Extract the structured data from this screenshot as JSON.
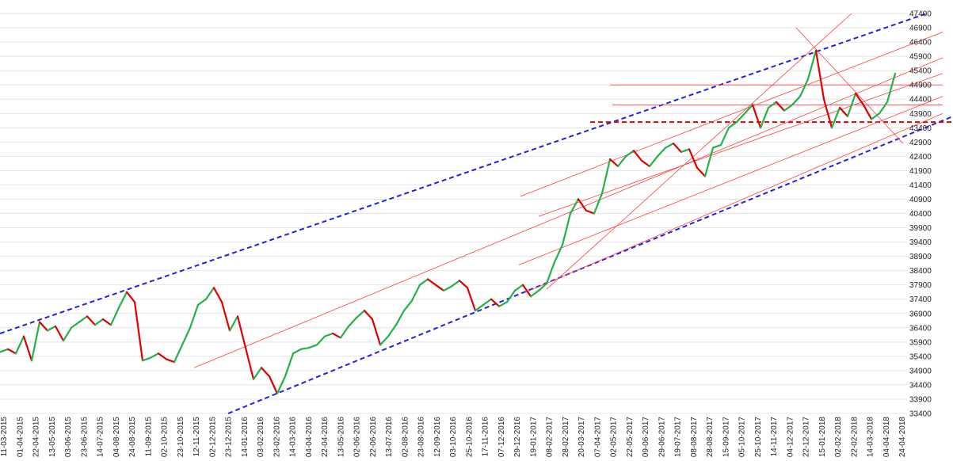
{
  "chart_data": {
    "type": "line",
    "title": "",
    "xlabel": "",
    "ylabel": "",
    "grid": true,
    "ylim": [
      33400,
      47400
    ],
    "y_axis_position": "right",
    "y_ticks": [
      33400,
      33900,
      34400,
      34900,
      35400,
      35900,
      36400,
      36900,
      37400,
      37900,
      38400,
      38900,
      39400,
      39900,
      40400,
      40900,
      41400,
      41900,
      42400,
      42900,
      43400,
      43900,
      44400,
      44900,
      45400,
      45900,
      46400,
      46900,
      47400
    ],
    "x_ticks": [
      "11-03-2015",
      "01-04-2015",
      "22-04-2015",
      "13-05-2015",
      "03-06-2015",
      "23-06-2015",
      "14-07-2015",
      "04-08-2015",
      "24-08-2015",
      "11-09-2015",
      "02-10-2015",
      "23-10-2015",
      "12-11-2015",
      "02-12-2015",
      "23-12-2015",
      "14-01-2016",
      "03-02-2016",
      "23-02-2016",
      "14-03-2016",
      "04-04-2016",
      "22-04-2016",
      "13-05-2016",
      "02-06-2016",
      "22-06-2016",
      "13-07-2016",
      "02-08-2016",
      "23-08-2016",
      "12-09-2016",
      "03-10-2016",
      "25-10-2016",
      "17-11-2016",
      "07-12-2016",
      "29-12-2016",
      "19-01-2017",
      "08-02-2017",
      "28-02-2017",
      "20-03-2017",
      "07-04-2017",
      "02-05-2017",
      "22-05-2017",
      "09-06-2017",
      "29-06-2017",
      "19-07-2017",
      "08-08-2017",
      "28-08-2017",
      "15-09-2017",
      "05-10-2017",
      "25-10-2017",
      "14-11-2017",
      "04-12-2017",
      "22-12-2017",
      "15-01-2018",
      "02-02-2018",
      "22-02-2018",
      "14-03-2018",
      "04-04-2018",
      "24-04-2018"
    ],
    "series": [
      {
        "up_color": "#22b14c",
        "down_color": "#e00000",
        "points": [
          [
            0,
            35550
          ],
          [
            10,
            35650
          ],
          [
            20,
            35500
          ],
          [
            30,
            36100
          ],
          [
            40,
            35250
          ],
          [
            50,
            36600
          ],
          [
            60,
            36300
          ],
          [
            70,
            36450
          ],
          [
            80,
            35950
          ],
          [
            90,
            36400
          ],
          [
            100,
            36600
          ],
          [
            110,
            36800
          ],
          [
            120,
            36500
          ],
          [
            130,
            36700
          ],
          [
            140,
            36500
          ],
          [
            150,
            37100
          ],
          [
            160,
            37650
          ],
          [
            170,
            37300
          ],
          [
            180,
            35250
          ],
          [
            190,
            35350
          ],
          [
            200,
            35500
          ],
          [
            210,
            35300
          ],
          [
            220,
            35200
          ],
          [
            230,
            35800
          ],
          [
            240,
            36400
          ],
          [
            250,
            37200
          ],
          [
            260,
            37400
          ],
          [
            270,
            37800
          ],
          [
            280,
            37300
          ],
          [
            290,
            36300
          ],
          [
            300,
            36800
          ],
          [
            310,
            35700
          ],
          [
            320,
            34600
          ],
          [
            330,
            35000
          ],
          [
            340,
            34700
          ],
          [
            350,
            34100
          ],
          [
            360,
            34700
          ],
          [
            370,
            35500
          ],
          [
            380,
            35650
          ],
          [
            390,
            35700
          ],
          [
            400,
            35800
          ],
          [
            410,
            36100
          ],
          [
            420,
            36200
          ],
          [
            430,
            36050
          ],
          [
            440,
            36450
          ],
          [
            450,
            36750
          ],
          [
            460,
            37000
          ],
          [
            470,
            36700
          ],
          [
            480,
            35800
          ],
          [
            490,
            36100
          ],
          [
            500,
            36500
          ],
          [
            510,
            37000
          ],
          [
            520,
            37350
          ],
          [
            530,
            37900
          ],
          [
            540,
            38100
          ],
          [
            550,
            37900
          ],
          [
            560,
            37700
          ],
          [
            570,
            37850
          ],
          [
            580,
            38050
          ],
          [
            590,
            37800
          ],
          [
            600,
            37000
          ],
          [
            610,
            37200
          ],
          [
            620,
            37400
          ],
          [
            630,
            37150
          ],
          [
            640,
            37300
          ],
          [
            650,
            37700
          ],
          [
            660,
            37900
          ],
          [
            670,
            37500
          ],
          [
            680,
            37700
          ],
          [
            690,
            37950
          ],
          [
            700,
            38700
          ],
          [
            710,
            39300
          ],
          [
            720,
            40400
          ],
          [
            730,
            40900
          ],
          [
            740,
            40500
          ],
          [
            750,
            40400
          ],
          [
            760,
            41100
          ],
          [
            770,
            42300
          ],
          [
            780,
            42050
          ],
          [
            790,
            42400
          ],
          [
            800,
            42600
          ],
          [
            810,
            42250
          ],
          [
            820,
            42050
          ],
          [
            830,
            42400
          ],
          [
            840,
            42700
          ],
          [
            850,
            42850
          ],
          [
            860,
            42550
          ],
          [
            870,
            42650
          ],
          [
            880,
            42000
          ],
          [
            890,
            41700
          ],
          [
            900,
            42700
          ],
          [
            910,
            42800
          ],
          [
            920,
            43400
          ],
          [
            930,
            43600
          ],
          [
            940,
            43900
          ],
          [
            950,
            44200
          ],
          [
            960,
            43400
          ],
          [
            970,
            44100
          ],
          [
            980,
            44300
          ],
          [
            990,
            44000
          ],
          [
            1000,
            44200
          ],
          [
            1010,
            44500
          ],
          [
            1020,
            45100
          ],
          [
            1030,
            46100
          ],
          [
            1040,
            44400
          ],
          [
            1050,
            43400
          ],
          [
            1060,
            44100
          ],
          [
            1070,
            43800
          ],
          [
            1080,
            44600
          ],
          [
            1090,
            44200
          ],
          [
            1100,
            43700
          ],
          [
            1110,
            43900
          ],
          [
            1120,
            44300
          ],
          [
            1130,
            45300
          ]
        ]
      }
    ],
    "annotations": [
      {
        "type": "line",
        "style": "dashed",
        "color": "#2222dd",
        "from": [
          0,
          36200
        ],
        "to": [
          1170,
          47400
        ]
      },
      {
        "type": "line",
        "style": "dashed",
        "color": "#2222dd",
        "from": [
          288,
          33400
        ],
        "to": [
          1203,
          43800
        ]
      },
      {
        "type": "line",
        "style": "dashed",
        "color": "#e00000",
        "from": [
          745,
          43600
        ],
        "to": [
          1203,
          43600
        ]
      },
      {
        "type": "line",
        "style": "solid",
        "color": "#ff4040",
        "from": [
          770,
          44900
        ],
        "to": [
          1190,
          44900
        ]
      },
      {
        "type": "line",
        "style": "solid",
        "color": "#ff4040",
        "from": [
          773,
          44200
        ],
        "to": [
          1190,
          44200
        ]
      },
      {
        "type": "line",
        "style": "solid",
        "color": "#ff4040",
        "from": [
          245,
          35000
        ],
        "to": [
          1190,
          45850
        ]
      },
      {
        "type": "line",
        "style": "solid",
        "color": "#ff4040",
        "from": [
          657,
          41000
        ],
        "to": [
          1190,
          46750
        ]
      },
      {
        "type": "line",
        "style": "solid",
        "color": "#ff4040",
        "from": [
          680,
          40300
        ],
        "to": [
          1190,
          45300
        ]
      },
      {
        "type": "line",
        "style": "solid",
        "color": "#ff4040",
        "from": [
          655,
          38600
        ],
        "to": [
          1190,
          44500
        ]
      },
      {
        "type": "line",
        "style": "solid",
        "color": "#ff4040",
        "from": [
          660,
          37600
        ],
        "to": [
          1190,
          43900
        ]
      },
      {
        "type": "line",
        "style": "solid",
        "color": "#ff4040",
        "from": [
          690,
          37750
        ],
        "to": [
          1075,
          47400
        ]
      },
      {
        "type": "line",
        "style": "solid",
        "color": "#ff4040",
        "from": [
          1005,
          46900
        ],
        "to": [
          1140,
          42850
        ]
      }
    ]
  }
}
